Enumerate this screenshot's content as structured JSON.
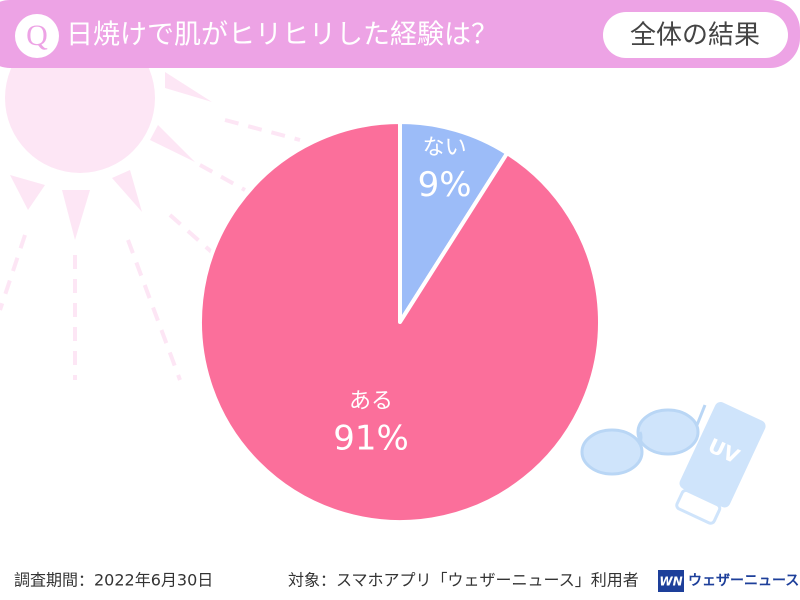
{
  "header": {
    "q": "Q",
    "title": "日焼けで肌がヒリヒリした経験は？",
    "badge": "全体の結果"
  },
  "chart_data": {
    "type": "pie",
    "categories": [
      "ない",
      "ある"
    ],
    "values": [
      9,
      91
    ],
    "value_labels": [
      "9%",
      "91%"
    ],
    "colors": [
      "#9cbcf8",
      "#fb6f9b"
    ],
    "start": "top",
    "direction": "clockwise"
  },
  "illustration": {
    "bottle_label": "UV"
  },
  "footer": {
    "period": "調査期間：2022年6月30日",
    "target": "対象：スマホアプリ「ウェザーニュース」利用者",
    "logo_mark": "WN",
    "logo_text": "ウェザーニュース"
  }
}
